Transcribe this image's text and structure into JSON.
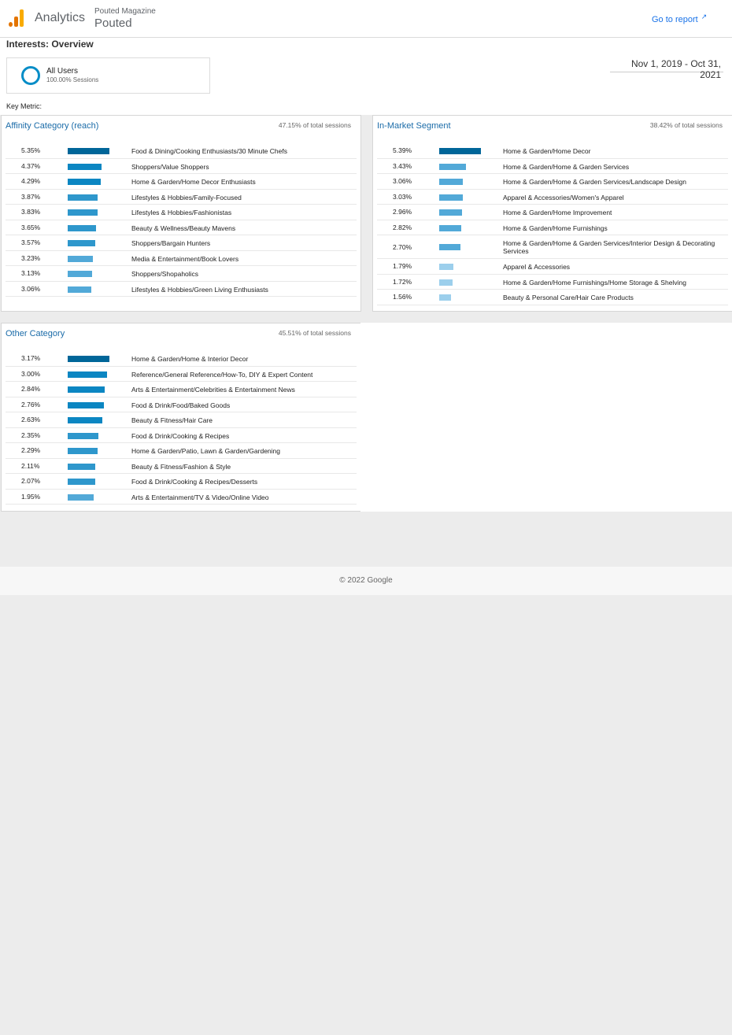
{
  "header": {
    "product": "Analytics",
    "account": "Pouted Magazine",
    "property": "Pouted",
    "goto_report": "Go to report"
  },
  "page": {
    "title": "Interests: Overview",
    "segment_name": "All Users",
    "segment_sub": "100.00% Sessions",
    "date_range": "Nov 1, 2019 - Oct 31, 2021",
    "key_metric": "Key Metric:"
  },
  "colors": {
    "brand_orange": "#e37400",
    "brand_yellow": "#f9ab00",
    "link_blue": "#1a73e8",
    "title_blue": "#1a6ba8",
    "bar_shades": [
      "#006699",
      "#0b86c2",
      "#2e97cc",
      "#52a9d8",
      "#9ccfec"
    ]
  },
  "panels": {
    "affinity": {
      "title": "Affinity Category (reach)",
      "share": "47.15% of total sessions",
      "rows": [
        {
          "pct": "5.35%",
          "value": 5.35,
          "label": "Food & Dining/Cooking Enthusiasts/30 Minute Chefs"
        },
        {
          "pct": "4.37%",
          "value": 4.37,
          "label": "Shoppers/Value Shoppers"
        },
        {
          "pct": "4.29%",
          "value": 4.29,
          "label": "Home & Garden/Home Decor Enthusiasts"
        },
        {
          "pct": "3.87%",
          "value": 3.87,
          "label": "Lifestyles & Hobbies/Family-Focused"
        },
        {
          "pct": "3.83%",
          "value": 3.83,
          "label": "Lifestyles & Hobbies/Fashionistas"
        },
        {
          "pct": "3.65%",
          "value": 3.65,
          "label": "Beauty & Wellness/Beauty Mavens"
        },
        {
          "pct": "3.57%",
          "value": 3.57,
          "label": "Shoppers/Bargain Hunters"
        },
        {
          "pct": "3.23%",
          "value": 3.23,
          "label": "Media & Entertainment/Book Lovers"
        },
        {
          "pct": "3.13%",
          "value": 3.13,
          "label": "Shoppers/Shopaholics"
        },
        {
          "pct": "3.06%",
          "value": 3.06,
          "label": "Lifestyles & Hobbies/Green Living Enthusiasts"
        }
      ]
    },
    "inmarket": {
      "title": "In-Market Segment",
      "share": "38.42% of total sessions",
      "rows": [
        {
          "pct": "5.39%",
          "value": 5.39,
          "label": "Home & Garden/Home Decor"
        },
        {
          "pct": "3.43%",
          "value": 3.43,
          "label": "Home & Garden/Home & Garden Services"
        },
        {
          "pct": "3.06%",
          "value": 3.06,
          "label": "Home & Garden/Home & Garden Services/Landscape Design"
        },
        {
          "pct": "3.03%",
          "value": 3.03,
          "label": "Apparel & Accessories/Women's Apparel"
        },
        {
          "pct": "2.96%",
          "value": 2.96,
          "label": "Home & Garden/Home Improvement"
        },
        {
          "pct": "2.82%",
          "value": 2.82,
          "label": "Home & Garden/Home Furnishings"
        },
        {
          "pct": "2.70%",
          "value": 2.7,
          "label": "Home & Garden/Home & Garden Services/Interior Design & Decorating Services"
        },
        {
          "pct": "1.79%",
          "value": 1.79,
          "label": "Apparel & Accessories"
        },
        {
          "pct": "1.72%",
          "value": 1.72,
          "label": "Home & Garden/Home Furnishings/Home Storage & Shelving"
        },
        {
          "pct": "1.56%",
          "value": 1.56,
          "label": "Beauty & Personal Care/Hair Care Products"
        }
      ]
    },
    "other": {
      "title": "Other Category",
      "share": "45.51% of total sessions",
      "rows": [
        {
          "pct": "3.17%",
          "value": 3.17,
          "label": "Home & Garden/Home & Interior Decor"
        },
        {
          "pct": "3.00%",
          "value": 3.0,
          "label": "Reference/General Reference/How-To, DIY & Expert Content"
        },
        {
          "pct": "2.84%",
          "value": 2.84,
          "label": "Arts & Entertainment/Celebrities & Entertainment News"
        },
        {
          "pct": "2.76%",
          "value": 2.76,
          "label": "Food & Drink/Food/Baked Goods"
        },
        {
          "pct": "2.63%",
          "value": 2.63,
          "label": "Beauty & Fitness/Hair Care"
        },
        {
          "pct": "2.35%",
          "value": 2.35,
          "label": "Food & Drink/Cooking & Recipes"
        },
        {
          "pct": "2.29%",
          "value": 2.29,
          "label": "Home & Garden/Patio, Lawn & Garden/Gardening"
        },
        {
          "pct": "2.11%",
          "value": 2.11,
          "label": "Beauty & Fitness/Fashion & Style"
        },
        {
          "pct": "2.07%",
          "value": 2.07,
          "label": "Food & Drink/Cooking & Recipes/Desserts"
        },
        {
          "pct": "1.95%",
          "value": 1.95,
          "label": "Arts & Entertainment/TV & Video/Online Video"
        }
      ]
    }
  },
  "footer": {
    "copyright": "© 2022 Google"
  }
}
